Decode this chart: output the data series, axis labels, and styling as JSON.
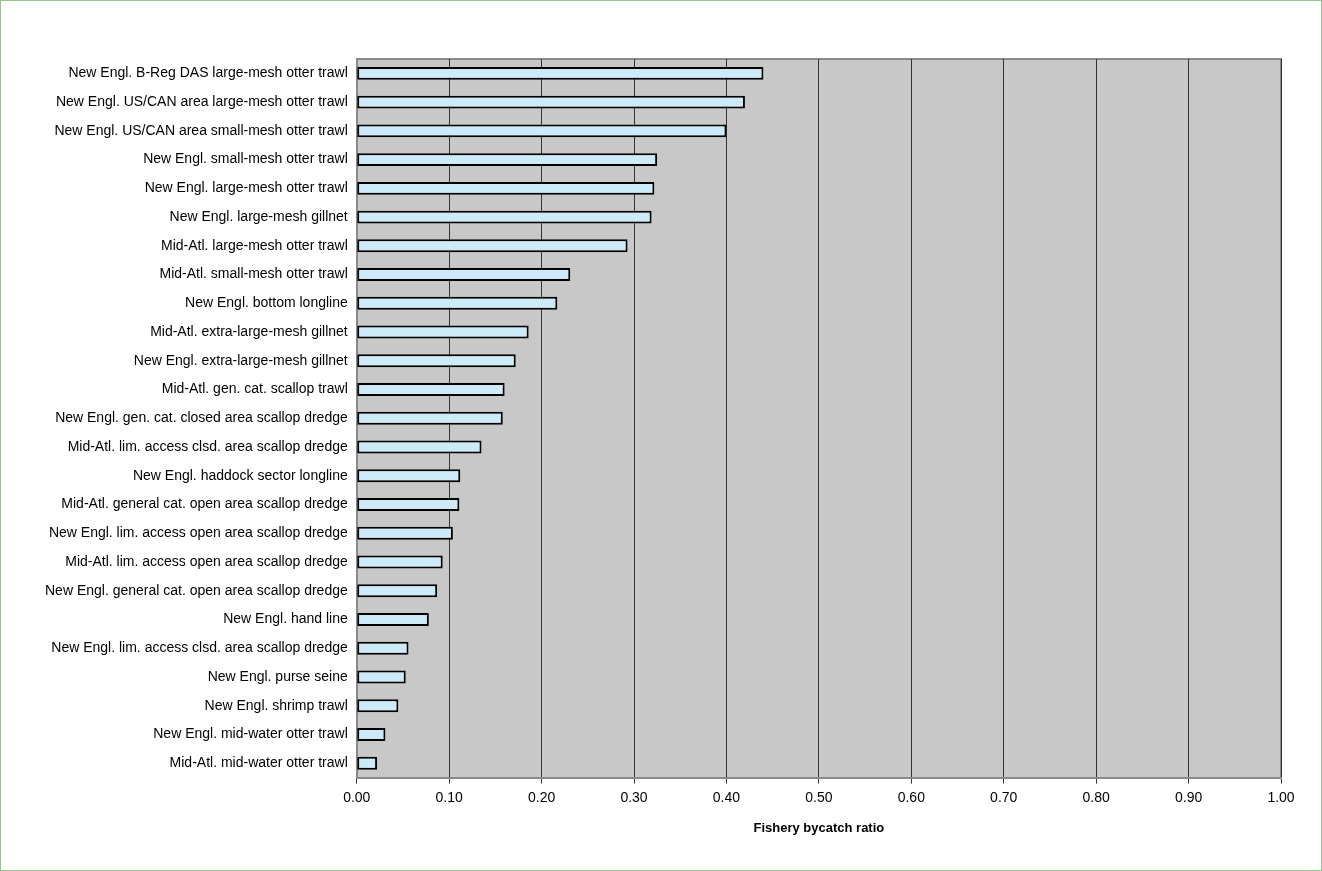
{
  "chart_data": {
    "type": "bar",
    "orientation": "horizontal",
    "xlabel": "Fishery bycatch ratio",
    "categories": [
      "New Engl. B-Reg DAS large-mesh otter trawl",
      "New Engl. US/CAN area large-mesh otter trawl",
      "New Engl. US/CAN area small-mesh otter trawl",
      "New Engl. small-mesh otter trawl",
      "New Engl. large-mesh otter trawl",
      "New Engl. large-mesh gillnet",
      "Mid-Atl. large-mesh otter trawl",
      "Mid-Atl. small-mesh otter trawl",
      "New Engl. bottom longline",
      "Mid-Atl. extra-large-mesh gillnet",
      "New Engl. extra-large-mesh gillnet",
      "Mid-Atl. gen. cat. scallop trawl",
      "New Engl. gen. cat. closed area scallop dredge",
      "Mid-Atl. lim. access clsd. area scallop dredge",
      "New Engl. haddock sector longline",
      "Mid-Atl. general cat. open area scallop dredge",
      "New Engl. lim. access open area scallop dredge",
      "Mid-Atl. lim. access open area scallop dredge",
      "New Engl. general cat. open area scallop dredge",
      "New Engl. hand line",
      "New Engl. lim. access clsd. area scallop dredge",
      "New Engl. purse seine",
      "New Engl. shrimp trawl",
      "New Engl. mid-water otter trawl",
      "Mid-Atl. mid-water otter trawl"
    ],
    "values": [
      0.44,
      0.42,
      0.4,
      0.325,
      0.322,
      0.319,
      0.293,
      0.231,
      0.217,
      0.186,
      0.172,
      0.16,
      0.158,
      0.135,
      0.112,
      0.111,
      0.104,
      0.093,
      0.087,
      0.078,
      0.056,
      0.053,
      0.045,
      0.031,
      0.022
    ],
    "color": "#cceaf8",
    "xlim": [
      0,
      1
    ],
    "xticks": [
      {
        "value": 0,
        "label": "0.00"
      },
      {
        "value": 0.1,
        "label": "0.10"
      },
      {
        "value": 0.2,
        "label": "0.20"
      },
      {
        "value": 0.3,
        "label": "0.30"
      },
      {
        "value": 0.4,
        "label": "0.40"
      },
      {
        "value": 0.5,
        "label": "0.50"
      },
      {
        "value": 0.6,
        "label": "0.60"
      },
      {
        "value": 0.7,
        "label": "0.70"
      },
      {
        "value": 0.8,
        "label": "0.80"
      },
      {
        "value": 0.9,
        "label": "0.90"
      },
      {
        "value": 1,
        "label": "1.00"
      }
    ],
    "grid": "x",
    "legend": false
  }
}
